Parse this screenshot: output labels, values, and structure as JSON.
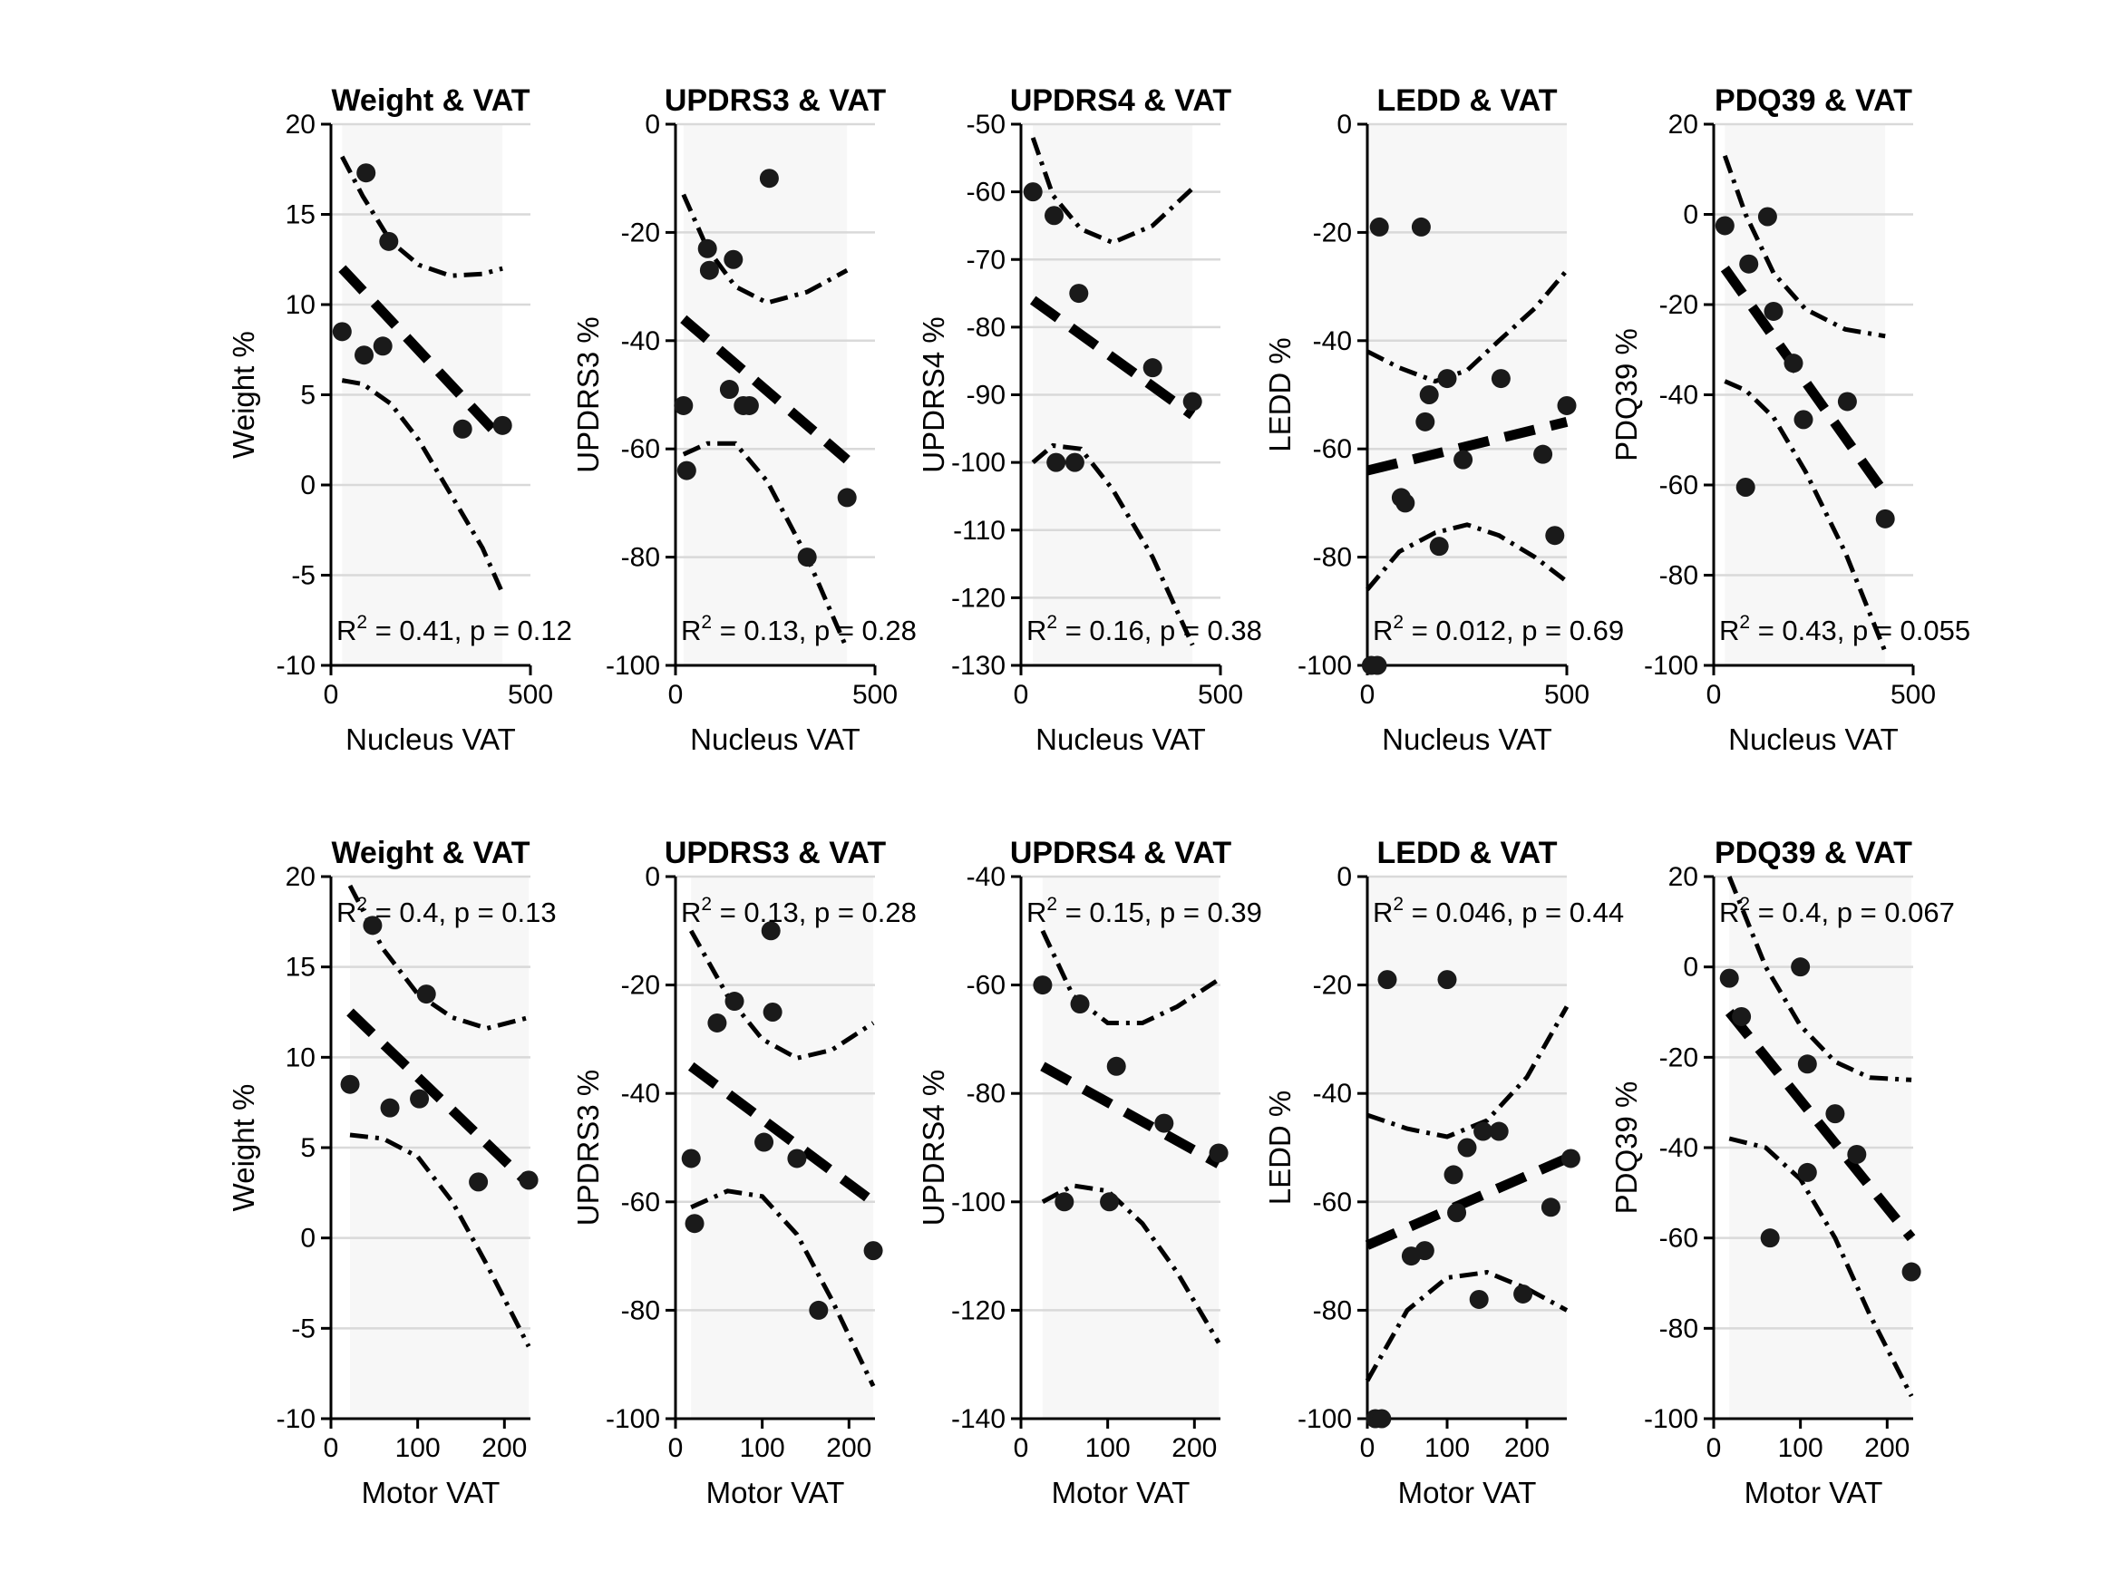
{
  "figure": {
    "background": "#ffffff",
    "band_color": "#f7f7f7",
    "grid_color": "#d9d9d9",
    "ink_color": "#000000",
    "point_color": "#1a1a1a"
  },
  "chart_data": [
    {
      "type": "scatter",
      "title": "Weight & VAT",
      "xlabel": "Nucleus VAT",
      "ylabel": "Weight %",
      "xlim": [
        0,
        500
      ],
      "ylim": [
        -10,
        20
      ],
      "xticks": [
        0,
        500
      ],
      "yticks": [
        -10,
        -5,
        0,
        5,
        10,
        15,
        20
      ],
      "points": [
        [
          28,
          8.5
        ],
        [
          83,
          7.2
        ],
        [
          88,
          17.3
        ],
        [
          130,
          7.7
        ],
        [
          145,
          13.5
        ],
        [
          330,
          3.1
        ],
        [
          430,
          3.3
        ]
      ],
      "fit": {
        "x": [
          28,
          430
        ],
        "y": [
          12,
          2.5
        ]
      },
      "ci_upper": [
        [
          28,
          18.2
        ],
        [
          80,
          16.0
        ],
        [
          150,
          13.5
        ],
        [
          220,
          12.2
        ],
        [
          300,
          11.6
        ],
        [
          380,
          11.7
        ],
        [
          430,
          12.0
        ]
      ],
      "ci_lower": [
        [
          28,
          5.8
        ],
        [
          80,
          5.6
        ],
        [
          150,
          4.5
        ],
        [
          220,
          2.5
        ],
        [
          300,
          -0.5
        ],
        [
          380,
          -3.5
        ],
        [
          430,
          -6.0
        ]
      ],
      "band_x": [
        28,
        430
      ],
      "stat": {
        "prefix": "R",
        "sup": "2",
        "text": " = 0.41, p = 0.12"
      },
      "stat_pos": "bottom"
    },
    {
      "type": "scatter",
      "title": "UPDRS3 & VAT",
      "xlabel": "Nucleus VAT",
      "ylabel": "UPDRS3 %",
      "xlim": [
        0,
        500
      ],
      "ylim": [
        -100,
        0
      ],
      "xticks": [
        0,
        500
      ],
      "yticks": [
        -100,
        -80,
        -60,
        -40,
        -20,
        0
      ],
      "points": [
        [
          20,
          -52
        ],
        [
          28,
          -64
        ],
        [
          80,
          -23
        ],
        [
          85,
          -27
        ],
        [
          135,
          -49
        ],
        [
          145,
          -25
        ],
        [
          170,
          -52
        ],
        [
          185,
          -52
        ],
        [
          235,
          -10
        ],
        [
          330,
          -80
        ],
        [
          430,
          -69
        ]
      ],
      "fit": {
        "x": [
          20,
          430
        ],
        "y": [
          -36,
          -62
        ]
      },
      "ci_upper": [
        [
          20,
          -13
        ],
        [
          80,
          -23
        ],
        [
          150,
          -30
        ],
        [
          230,
          -33
        ],
        [
          330,
          -31
        ],
        [
          430,
          -27
        ]
      ],
      "ci_lower": [
        [
          20,
          -61
        ],
        [
          80,
          -59
        ],
        [
          150,
          -59
        ],
        [
          230,
          -66
        ],
        [
          330,
          -80
        ],
        [
          430,
          -97
        ]
      ],
      "band_x": [
        20,
        430
      ],
      "stat": {
        "prefix": "R",
        "sup": "2",
        "text": " = 0.13, p = 0.28"
      },
      "stat_pos": "bottom"
    },
    {
      "type": "scatter",
      "title": "UPDRS4 & VAT",
      "xlabel": "Nucleus VAT",
      "ylabel": "UPDRS4 %",
      "xlim": [
        0,
        500
      ],
      "ylim": [
        -130,
        -50
      ],
      "xticks": [
        0,
        500
      ],
      "yticks": [
        -130,
        -120,
        -110,
        -100,
        -90,
        -80,
        -70,
        -60,
        -50
      ],
      "points": [
        [
          30,
          -60
        ],
        [
          83,
          -63.5
        ],
        [
          88,
          -100
        ],
        [
          135,
          -100
        ],
        [
          145,
          -75
        ],
        [
          330,
          -86
        ],
        [
          430,
          -91
        ]
      ],
      "fit": {
        "x": [
          30,
          430
        ],
        "y": [
          -76,
          -93
        ]
      },
      "ci_upper": [
        [
          30,
          -52
        ],
        [
          80,
          -60.5
        ],
        [
          150,
          -65.5
        ],
        [
          230,
          -67.5
        ],
        [
          330,
          -65
        ],
        [
          430,
          -59.5
        ]
      ],
      "ci_lower": [
        [
          30,
          -100
        ],
        [
          80,
          -97.5
        ],
        [
          150,
          -98
        ],
        [
          230,
          -104
        ],
        [
          330,
          -114
        ],
        [
          430,
          -127
        ]
      ],
      "band_x": [
        30,
        430
      ],
      "stat": {
        "prefix": "R",
        "sup": "2",
        "text": " = 0.16, p = 0.38"
      },
      "stat_pos": "bottom"
    },
    {
      "type": "scatter",
      "title": "LEDD & VAT",
      "xlabel": "Nucleus VAT",
      "ylabel": "LEDD %",
      "xlim": [
        0,
        500
      ],
      "ylim": [
        -100,
        0
      ],
      "xticks": [
        0,
        500
      ],
      "yticks": [
        -100,
        -80,
        -60,
        -40,
        -20,
        0
      ],
      "points": [
        [
          10,
          -100
        ],
        [
          25,
          -100
        ],
        [
          30,
          -19
        ],
        [
          85,
          -69
        ],
        [
          95,
          -70
        ],
        [
          135,
          -19
        ],
        [
          145,
          -55
        ],
        [
          155,
          -50
        ],
        [
          180,
          -78
        ],
        [
          200,
          -47
        ],
        [
          240,
          -62
        ],
        [
          335,
          -47
        ],
        [
          440,
          -61
        ],
        [
          470,
          -76
        ],
        [
          500,
          -52
        ]
      ],
      "fit": {
        "x": [
          0,
          500
        ],
        "y": [
          -64,
          -55
        ]
      },
      "ci_upper": [
        [
          0,
          -42
        ],
        [
          80,
          -45
        ],
        [
          170,
          -47.5
        ],
        [
          250,
          -45.5
        ],
        [
          330,
          -40
        ],
        [
          420,
          -34
        ],
        [
          500,
          -27
        ]
      ],
      "ci_lower": [
        [
          0,
          -86
        ],
        [
          80,
          -79
        ],
        [
          170,
          -75.5
        ],
        [
          250,
          -74
        ],
        [
          330,
          -76
        ],
        [
          420,
          -80
        ],
        [
          500,
          -84.5
        ]
      ],
      "band_x": [
        0,
        500
      ],
      "stat": {
        "prefix": "R",
        "sup": "2",
        "text": " = 0.012, p = 0.69"
      },
      "stat_pos": "bottom"
    },
    {
      "type": "scatter",
      "title": "PDQ39 & VAT",
      "xlabel": "Nucleus VAT",
      "ylabel": "PDQ39 %",
      "xlim": [
        0,
        500
      ],
      "ylim": [
        -100,
        20
      ],
      "xticks": [
        0,
        500
      ],
      "yticks": [
        -100,
        -80,
        -60,
        -40,
        -20,
        0,
        20
      ],
      "points": [
        [
          28,
          -2.5
        ],
        [
          80,
          -60.5
        ],
        [
          88,
          -11
        ],
        [
          135,
          -0.5
        ],
        [
          150,
          -21.5
        ],
        [
          200,
          -33
        ],
        [
          225,
          -45.5
        ],
        [
          335,
          -41.5
        ],
        [
          430,
          -67.5
        ]
      ],
      "fit": {
        "x": [
          28,
          430
        ],
        "y": [
          -12,
          -62
        ]
      },
      "ci_upper": [
        [
          28,
          13
        ],
        [
          80,
          0
        ],
        [
          150,
          -13
        ],
        [
          230,
          -21
        ],
        [
          330,
          -25.5
        ],
        [
          430,
          -27
        ]
      ],
      "ci_lower": [
        [
          28,
          -37
        ],
        [
          80,
          -39
        ],
        [
          150,
          -45
        ],
        [
          230,
          -57
        ],
        [
          330,
          -75
        ],
        [
          430,
          -97
        ]
      ],
      "band_x": [
        28,
        430
      ],
      "stat": {
        "prefix": "R",
        "sup": "2",
        "text": " = 0.43, p = 0.055"
      },
      "stat_pos": "bottom"
    },
    {
      "type": "scatter",
      "title": "Weight & VAT",
      "xlabel": "Motor VAT",
      "ylabel": "Weight %",
      "xlim": [
        0,
        230
      ],
      "ylim": [
        -10,
        20
      ],
      "xticks": [
        0,
        100,
        200
      ],
      "yticks": [
        -10,
        -5,
        0,
        5,
        10,
        15,
        20
      ],
      "points": [
        [
          22,
          8.5
        ],
        [
          48,
          17.3
        ],
        [
          68,
          7.2
        ],
        [
          102,
          7.7
        ],
        [
          110,
          13.5
        ],
        [
          170,
          3.1
        ],
        [
          228,
          3.2
        ]
      ],
      "fit": {
        "x": [
          22,
          228
        ],
        "y": [
          12.5,
          3
        ]
      },
      "ci_upper": [
        [
          22,
          19.5
        ],
        [
          60,
          16
        ],
        [
          100,
          13.5
        ],
        [
          140,
          12.2
        ],
        [
          180,
          11.6
        ],
        [
          228,
          12.2
        ]
      ],
      "ci_lower": [
        [
          22,
          5.7
        ],
        [
          60,
          5.5
        ],
        [
          100,
          4.5
        ],
        [
          140,
          2
        ],
        [
          180,
          -1.5
        ],
        [
          228,
          -6
        ]
      ],
      "band_x": [
        22,
        228
      ],
      "stat": {
        "prefix": "R",
        "sup": "2",
        "text": " = 0.4, p = 0.13"
      },
      "stat_pos": "top"
    },
    {
      "type": "scatter",
      "title": "UPDRS3 & VAT",
      "xlabel": "Motor VAT",
      "ylabel": "UPDRS3 %",
      "xlim": [
        0,
        230
      ],
      "ylim": [
        -100,
        0
      ],
      "xticks": [
        0,
        100,
        200
      ],
      "yticks": [
        -100,
        -80,
        -60,
        -40,
        -20,
        0
      ],
      "points": [
        [
          18,
          -52
        ],
        [
          22,
          -64
        ],
        [
          48,
          -27
        ],
        [
          68,
          -23
        ],
        [
          102,
          -49
        ],
        [
          110,
          -10
        ],
        [
          112,
          -25
        ],
        [
          140,
          -52
        ],
        [
          165,
          -80
        ],
        [
          228,
          -69
        ]
      ],
      "fit": {
        "x": [
          18,
          228
        ],
        "y": [
          -35,
          -60
        ]
      },
      "ci_upper": [
        [
          18,
          -10
        ],
        [
          60,
          -22
        ],
        [
          100,
          -30
        ],
        [
          140,
          -33.5
        ],
        [
          180,
          -32
        ],
        [
          228,
          -27
        ]
      ],
      "ci_lower": [
        [
          18,
          -61
        ],
        [
          60,
          -58
        ],
        [
          100,
          -59
        ],
        [
          140,
          -66
        ],
        [
          180,
          -78
        ],
        [
          228,
          -94
        ]
      ],
      "band_x": [
        18,
        228
      ],
      "stat": {
        "prefix": "R",
        "sup": "2",
        "text": " = 0.13, p = 0.28"
      },
      "stat_pos": "top"
    },
    {
      "type": "scatter",
      "title": "UPDRS4 & VAT",
      "xlabel": "Motor VAT",
      "ylabel": "UPDRS4 %",
      "xlim": [
        0,
        230
      ],
      "ylim": [
        -140,
        -40
      ],
      "xticks": [
        0,
        100,
        200
      ],
      "yticks": [
        -140,
        -120,
        -100,
        -80,
        -60,
        -40
      ],
      "points": [
        [
          25,
          -60
        ],
        [
          50,
          -100
        ],
        [
          68,
          -63.5
        ],
        [
          102,
          -100
        ],
        [
          110,
          -75
        ],
        [
          165,
          -85.5
        ],
        [
          228,
          -91
        ]
      ],
      "fit": {
        "x": [
          25,
          228
        ],
        "y": [
          -75,
          -93
        ]
      },
      "ci_upper": [
        [
          25,
          -50
        ],
        [
          60,
          -62
        ],
        [
          100,
          -67
        ],
        [
          140,
          -67
        ],
        [
          180,
          -64
        ],
        [
          228,
          -59
        ]
      ],
      "ci_lower": [
        [
          25,
          -100
        ],
        [
          60,
          -97
        ],
        [
          100,
          -98
        ],
        [
          140,
          -104
        ],
        [
          180,
          -113
        ],
        [
          228,
          -126
        ]
      ],
      "band_x": [
        25,
        228
      ],
      "stat": {
        "prefix": "R",
        "sup": "2",
        "text": " = 0.15, p = 0.39"
      },
      "stat_pos": "top"
    },
    {
      "type": "scatter",
      "title": "LEDD & VAT",
      "xlabel": "Motor VAT",
      "ylabel": "LEDD %",
      "xlim": [
        0,
        250
      ],
      "ylim": [
        -100,
        0
      ],
      "xticks": [
        0,
        100,
        200
      ],
      "yticks": [
        -100,
        -80,
        -60,
        -40,
        -20,
        0
      ],
      "points": [
        [
          10,
          -100
        ],
        [
          18,
          -100
        ],
        [
          25,
          -19
        ],
        [
          55,
          -70
        ],
        [
          72,
          -69
        ],
        [
          100,
          -19
        ],
        [
          108,
          -55
        ],
        [
          112,
          -62
        ],
        [
          125,
          -50
        ],
        [
          140,
          -78
        ],
        [
          145,
          -47
        ],
        [
          165,
          -47
        ],
        [
          195,
          -77
        ],
        [
          230,
          -61
        ],
        [
          255,
          -52
        ]
      ],
      "fit": {
        "x": [
          0,
          250
        ],
        "y": [
          -68,
          -52
        ]
      },
      "ci_upper": [
        [
          0,
          -44
        ],
        [
          50,
          -46.5
        ],
        [
          100,
          -48
        ],
        [
          150,
          -45
        ],
        [
          200,
          -37
        ],
        [
          250,
          -24
        ]
      ],
      "ci_lower": [
        [
          0,
          -93
        ],
        [
          50,
          -80
        ],
        [
          100,
          -74
        ],
        [
          150,
          -73
        ],
        [
          200,
          -76
        ],
        [
          250,
          -80
        ]
      ],
      "band_x": [
        0,
        250
      ],
      "stat": {
        "prefix": "R",
        "sup": "2",
        "text": " = 0.046, p = 0.44"
      },
      "stat_pos": "top"
    },
    {
      "type": "scatter",
      "title": "PDQ39 & VAT",
      "xlabel": "Motor VAT",
      "ylabel": "PDQ39 %",
      "xlim": [
        0,
        230
      ],
      "ylim": [
        -100,
        20
      ],
      "xticks": [
        0,
        100,
        200
      ],
      "yticks": [
        -100,
        -80,
        -60,
        -40,
        -20,
        0,
        20
      ],
      "points": [
        [
          18,
          -2.5
        ],
        [
          32,
          -11
        ],
        [
          65,
          -60
        ],
        [
          100,
          0
        ],
        [
          108,
          -21.5
        ],
        [
          108,
          -45.5
        ],
        [
          140,
          -32.5
        ],
        [
          165,
          -41.5
        ],
        [
          228,
          -67.5
        ]
      ],
      "fit": {
        "x": [
          18,
          228
        ],
        "y": [
          -10,
          -60
        ]
      },
      "ci_upper": [
        [
          18,
          20
        ],
        [
          60,
          0
        ],
        [
          100,
          -13
        ],
        [
          140,
          -21
        ],
        [
          180,
          -24.5
        ],
        [
          228,
          -25
        ]
      ],
      "ci_lower": [
        [
          18,
          -38
        ],
        [
          60,
          -40
        ],
        [
          100,
          -47
        ],
        [
          140,
          -60
        ],
        [
          180,
          -77
        ],
        [
          228,
          -95
        ]
      ],
      "band_x": [
        18,
        228
      ],
      "stat": {
        "prefix": "R",
        "sup": "2",
        "text": " = 0.4, p = 0.067"
      },
      "stat_pos": "top"
    }
  ]
}
